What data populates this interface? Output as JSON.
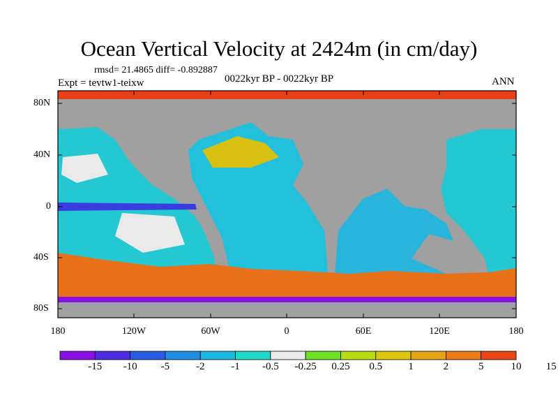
{
  "title": "Ocean Vertical Velocity at 2424m (in cm/day)",
  "stats": "rmsd= 21.4865 diff= -0.892887",
  "experiment": "Expt = tevtw1-teixw",
  "center_label": "0022kyr BP - 0022kyr BP",
  "season": "ANN",
  "lat_labels": [
    "80N",
    "40N",
    "0",
    "40S",
    "80S"
  ],
  "lon_labels": [
    "180",
    "120W",
    "60W",
    "0",
    "60E",
    "120E",
    "180"
  ],
  "land_color": "#a0a0a0",
  "colorbar": {
    "colors": [
      "#8b10e8",
      "#4d2be3",
      "#2a5be3",
      "#1f8fe6",
      "#1ab8e0",
      "#22d8c8",
      "#eaeaea",
      "#6fe028",
      "#b8dc14",
      "#dcc80e",
      "#e6a414",
      "#ea7a18",
      "#ea4616"
    ],
    "labels": [
      "-15",
      "-10",
      "-5",
      "-2",
      "-1",
      "-0.5",
      "-0.25",
      "0.25",
      "0.5",
      "1",
      "2",
      "5",
      "10",
      "15"
    ]
  }
}
